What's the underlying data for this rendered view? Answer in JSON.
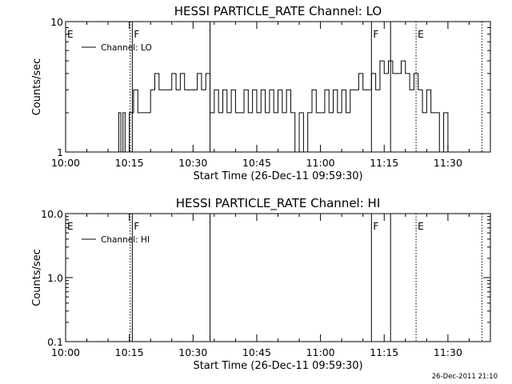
{
  "chart_data": [
    {
      "type": "line",
      "title": "HESSI PARTICLE_RATE Channel: LO",
      "xlabel": "Start Time (26-Dec-11 09:59:30)",
      "ylabel": "Counts/sec",
      "x_unit": "minutes after 10:00 (26-Dec-2011)",
      "xlim": [
        0,
        100
      ],
      "ylim": [
        1,
        10
      ],
      "y_scale": "log",
      "x_ticks": [
        "10:00",
        "10:15",
        "10:30",
        "10:45",
        "11:00",
        "11:15",
        "11:30"
      ],
      "y_ticks": [
        "1",
        "10"
      ],
      "legend": {
        "position": "top-left",
        "entries": [
          "Channel: LO"
        ]
      },
      "series": [
        {
          "name": "Channel: LO",
          "x": [
            0,
            12,
            12.5,
            13,
            13.5,
            14,
            14.5,
            15,
            15.5,
            16,
            17,
            18,
            19,
            20,
            21,
            22,
            23,
            24,
            25,
            26,
            27,
            28,
            29,
            30,
            31,
            32,
            33,
            34,
            35,
            36,
            37,
            38,
            39,
            40,
            41,
            42,
            43,
            44,
            45,
            46,
            47,
            48,
            49,
            50,
            51,
            52,
            53,
            54,
            55,
            56,
            57,
            58,
            59,
            60,
            61,
            62,
            63,
            64,
            65,
            66,
            67,
            68,
            69,
            70,
            71,
            72,
            73,
            74,
            75,
            76,
            77,
            78,
            79,
            80,
            81,
            82,
            83,
            84,
            85,
            86,
            87,
            88,
            89,
            90,
            91,
            100
          ],
          "y": [
            1,
            1,
            2,
            1,
            2,
            1,
            1,
            2,
            2,
            3,
            2,
            2,
            2,
            3,
            4,
            3,
            3,
            3,
            4,
            3,
            4,
            3,
            3,
            3,
            4,
            3,
            4,
            2,
            3,
            2,
            3,
            2,
            3,
            2,
            2,
            3,
            2,
            3,
            2,
            3,
            2,
            3,
            2,
            3,
            2,
            3,
            2,
            1,
            2,
            1,
            2,
            3,
            2,
            2,
            3,
            2,
            3,
            2,
            3,
            2,
            3,
            3,
            4,
            3,
            3,
            4,
            3,
            5,
            4,
            5,
            4,
            4,
            5,
            4,
            3,
            4,
            3,
            2,
            3,
            2,
            2,
            1,
            2,
            1,
            1,
            1
          ]
        }
      ],
      "annotations": {
        "solid_lines_x": [
          15.7,
          34,
          72,
          76.5
        ],
        "dotted_lines_x": [
          15.2,
          82.5,
          98
        ],
        "markers": [
          {
            "text": "E",
            "x": 0
          },
          {
            "text": "F",
            "x": 15.7
          },
          {
            "text": "F",
            "x": 72
          },
          {
            "text": "E",
            "x": 82.5
          }
        ]
      }
    },
    {
      "type": "line",
      "title": "HESSI PARTICLE_RATE Channel: HI",
      "xlabel": "Start Time (26-Dec-11 09:59:30)",
      "ylabel": "Counts/sec",
      "x_unit": "minutes after 10:00 (26-Dec-2011)",
      "xlim": [
        0,
        100
      ],
      "ylim": [
        0.1,
        10
      ],
      "y_scale": "log",
      "x_ticks": [
        "10:00",
        "10:15",
        "10:30",
        "10:45",
        "11:00",
        "11:15",
        "11:30"
      ],
      "y_ticks": [
        "0.1",
        "1.0",
        "10.0"
      ],
      "legend": {
        "position": "top-left",
        "entries": [
          "Channel: HI"
        ]
      },
      "series": [
        {
          "name": "Channel: HI",
          "x": [],
          "y": []
        }
      ],
      "annotations": {
        "solid_lines_x": [
          15.7,
          34,
          72,
          76.5
        ],
        "dotted_lines_x": [
          15.2,
          82.5,
          98
        ],
        "markers": [
          {
            "text": "E",
            "x": 0
          },
          {
            "text": "F",
            "x": 15.7
          },
          {
            "text": "F",
            "x": 72
          },
          {
            "text": "E",
            "x": 82.5
          }
        ]
      }
    }
  ],
  "timestamp": "26-Dec-2011 21:10"
}
